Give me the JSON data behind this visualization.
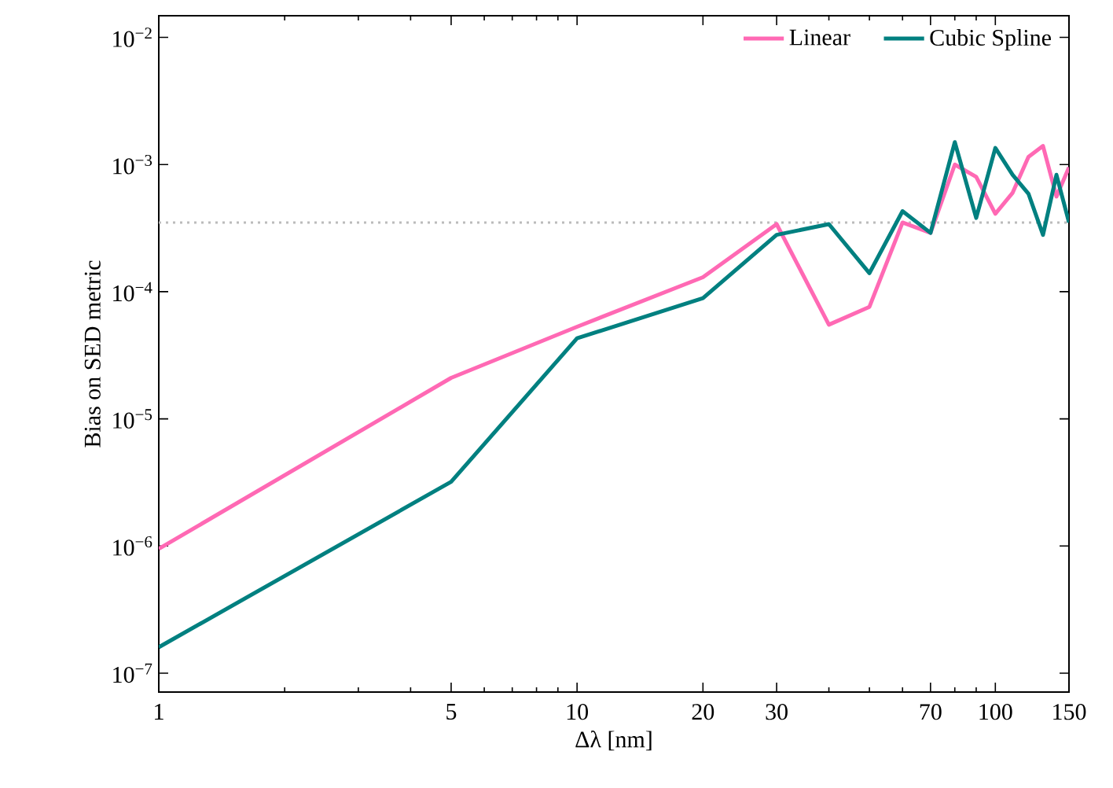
{
  "chart_data": {
    "type": "line",
    "xlabel": "Δλ [nm]",
    "ylabel": "Bias on SED metric",
    "log": "xy",
    "grid": false,
    "legend": "top right",
    "marker": "none",
    "line_style": "solid",
    "x": [
      1,
      5,
      10,
      20,
      30,
      40,
      50,
      60,
      70,
      80,
      90,
      100,
      110,
      120,
      130,
      140,
      150
    ],
    "series": [
      {
        "name": "Linear",
        "color": "#ff69b4",
        "values": [
          9.5e-07,
          2.1e-05,
          5.3e-05,
          0.00013,
          0.00034,
          5.5e-05,
          7.6e-05,
          0.00035,
          0.00029,
          0.001,
          0.0008,
          0.00041,
          0.0006,
          0.00115,
          0.0014,
          0.00056,
          0.00095
        ]
      },
      {
        "name": "Cubic Spline",
        "color": "#008080",
        "values": [
          1.6e-07,
          3.2e-06,
          4.3e-05,
          8.9e-05,
          0.00028,
          0.00034,
          0.00014,
          0.00043,
          0.00029,
          0.0015,
          0.00038,
          0.00135,
          0.00083,
          0.00059,
          0.00028,
          0.00083,
          0.00035
        ]
      }
    ],
    "xlim": [
      1,
      150
    ],
    "ylim": [
      7.1e-08,
      0.0148
    ],
    "xticks": [
      1,
      {
        "value": 2,
        "label": null
      },
      {
        "value": 3,
        "label": null
      },
      {
        "value": 4,
        "label": null
      },
      5,
      {
        "value": 6,
        "label": null
      },
      {
        "value": 7,
        "label": null
      },
      {
        "value": 8,
        "label": null
      },
      {
        "value": 9,
        "label": null
      },
      10,
      20,
      30,
      {
        "value": 40,
        "label": null
      },
      {
        "value": 50,
        "label": null
      },
      {
        "value": 60,
        "label": null
      },
      70,
      {
        "value": 80,
        "label": null
      },
      {
        "value": 90,
        "label": null
      },
      100,
      150
    ],
    "yticks": [
      {
        "value": 1e-07,
        "label": "10$^{−7}$"
      },
      {
        "value": 1e-06,
        "label": "10$^{−6}$"
      },
      {
        "value": 1e-05,
        "label": "10$^{−5}$"
      },
      {
        "value": 0.0001,
        "label": "10$^{−4}$"
      },
      {
        "value": 0.001,
        "label": "10$^{−3}$"
      },
      {
        "value": 0.01,
        "label": "10$^{−2}$"
      }
    ],
    "ref_lines": [
      {
        "axis": "y",
        "value": 0.00035,
        "color": "#bbbbbb",
        "line_style": "dotted"
      }
    ]
  }
}
